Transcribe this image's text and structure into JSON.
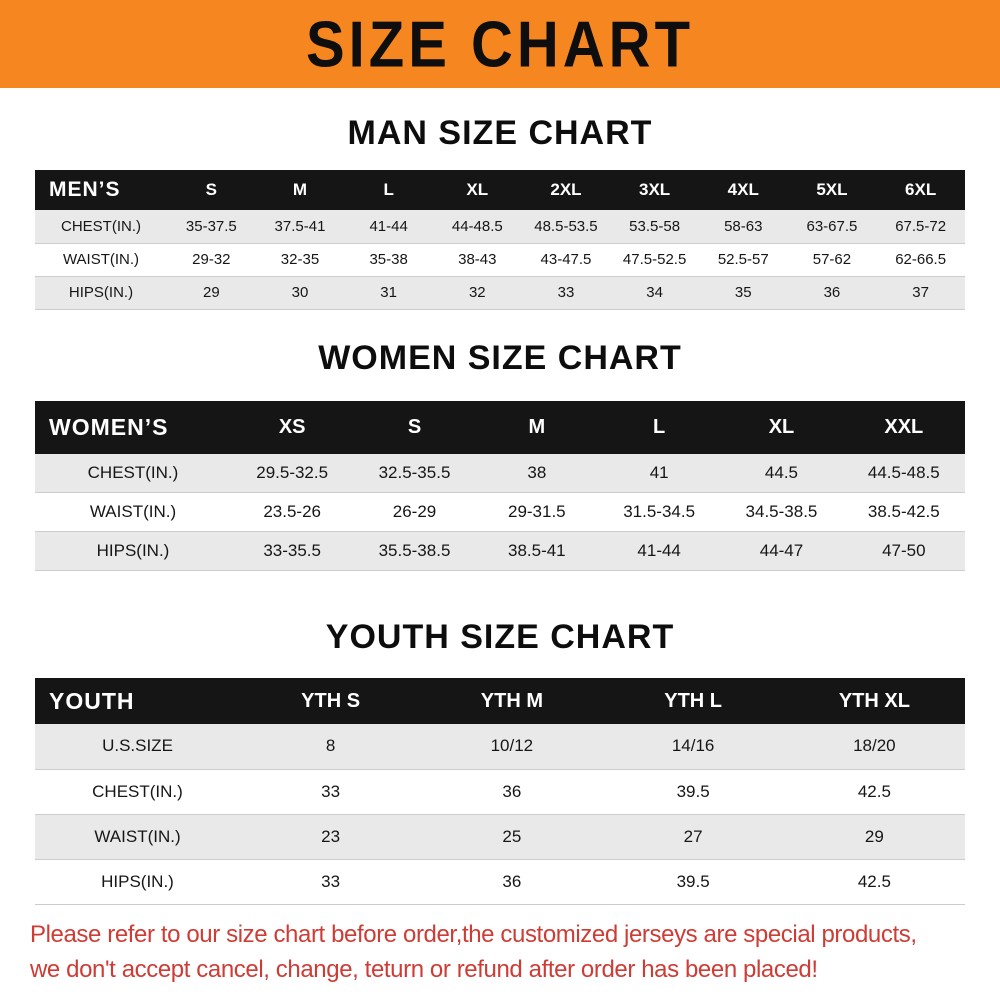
{
  "banner": {
    "title": "SIZE CHART",
    "bg_color": "#F6861F"
  },
  "chart_data": [
    {
      "type": "table",
      "id": "men",
      "title": "MAN SIZE CHART",
      "header_label": "MEN’S",
      "columns": [
        "S",
        "M",
        "L",
        "XL",
        "2XL",
        "3XL",
        "4XL",
        "5XL",
        "6XL"
      ],
      "rows": [
        {
          "label": "CHEST(IN.)",
          "values": [
            "35-37.5",
            "37.5-41",
            "41-44",
            "44-48.5",
            "48.5-53.5",
            "53.5-58",
            "58-63",
            "63-67.5",
            "67.5-72"
          ]
        },
        {
          "label": "WAIST(IN.)",
          "values": [
            "29-32",
            "32-35",
            "35-38",
            "38-43",
            "43-47.5",
            "47.5-52.5",
            "52.5-57",
            "57-62",
            "62-66.5"
          ]
        },
        {
          "label": "HIPS(IN.)",
          "values": [
            "29",
            "30",
            "31",
            "32",
            "33",
            "34",
            "35",
            "36",
            "37"
          ]
        }
      ]
    },
    {
      "type": "table",
      "id": "women",
      "title": "WOMEN SIZE CHART",
      "header_label": "WOMEN’S",
      "columns": [
        "XS",
        "S",
        "M",
        "L",
        "XL",
        "XXL"
      ],
      "rows": [
        {
          "label": "CHEST(IN.)",
          "values": [
            "29.5-32.5",
            "32.5-35.5",
            "38",
            "41",
            "44.5",
            "44.5-48.5"
          ]
        },
        {
          "label": "WAIST(IN.)",
          "values": [
            "23.5-26",
            "26-29",
            "29-31.5",
            "31.5-34.5",
            "34.5-38.5",
            "38.5-42.5"
          ]
        },
        {
          "label": "HIPS(IN.)",
          "values": [
            "33-35.5",
            "35.5-38.5",
            "38.5-41",
            "41-44",
            "44-47",
            "47-50"
          ]
        }
      ]
    },
    {
      "type": "table",
      "id": "youth",
      "title": "YOUTH SIZE CHART",
      "header_label": "YOUTH",
      "columns": [
        "YTH S",
        "YTH M",
        "YTH L",
        "YTH XL"
      ],
      "rows": [
        {
          "label": "U.S.SIZE",
          "values": [
            "8",
            "10/12",
            "14/16",
            "18/20"
          ]
        },
        {
          "label": "CHEST(IN.)",
          "values": [
            "33",
            "36",
            "39.5",
            "42.5"
          ]
        },
        {
          "label": "WAIST(IN.)",
          "values": [
            "23",
            "25",
            "27",
            "29"
          ]
        },
        {
          "label": "HIPS(IN.)",
          "values": [
            "33",
            "36",
            "39.5",
            "42.5"
          ]
        }
      ]
    }
  ],
  "footer": {
    "lines": [
      "Please refer to our size chart before order,the customized jerseys are special products,",
      "we don't accept cancel, change, teturn or refund after order has been placed!"
    ],
    "text_color": "#CE3C35"
  }
}
